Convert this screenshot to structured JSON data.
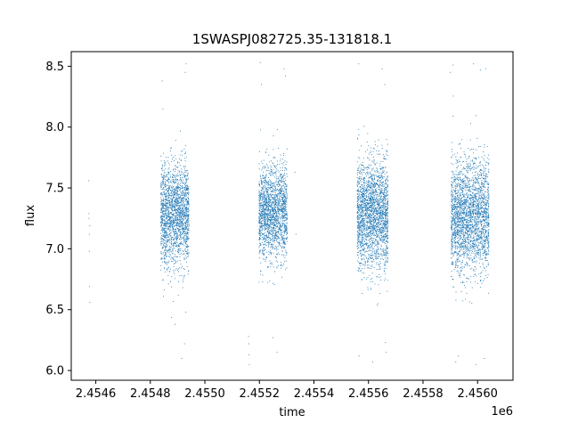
{
  "chart_data": {
    "type": "scatter",
    "title": "1SWASPJ082725.35-131818.1",
    "xlabel": "time",
    "ylabel": "flux",
    "x_offset_label": "1e6",
    "xlim": [
      2454510,
      2456130
    ],
    "ylim": [
      5.92,
      8.62
    ],
    "x_ticks": [
      2454600,
      2454800,
      2455000,
      2455200,
      2455400,
      2455600,
      2455800,
      2456000
    ],
    "x_tick_labels": [
      "2.4546",
      "2.4548",
      "2.4550",
      "2.4552",
      "2.4554",
      "2.4556",
      "2.4558",
      "2.4560"
    ],
    "y_ticks": [
      6.0,
      6.5,
      7.0,
      7.5,
      8.0,
      8.5
    ],
    "y_tick_labels": [
      "6.0",
      "6.5",
      "7.0",
      "7.5",
      "8.0",
      "8.5"
    ],
    "grid": false,
    "marker_color": "#1f77b4",
    "series": [
      {
        "points": [
          [
            2454574,
            7.56
          ],
          [
            2454575,
            7.29
          ],
          [
            2454575,
            7.25
          ],
          [
            2454576,
            7.12
          ],
          [
            2454576,
            6.98
          ],
          [
            2454577,
            6.69
          ],
          [
            2454578,
            6.56
          ],
          [
            2454578,
            7.19
          ]
        ]
      }
    ],
    "observing_seasons": [
      {
        "start": 2454840,
        "end": 2454940,
        "center": 7.28,
        "spread": 0.21,
        "count": 1900
      },
      {
        "start": 2455200,
        "end": 2455300,
        "center": 7.3,
        "spread": 0.19,
        "count": 1800
      },
      {
        "start": 2455560,
        "end": 2455670,
        "center": 7.28,
        "spread": 0.22,
        "count": 2200
      },
      {
        "start": 2455905,
        "end": 2456040,
        "center": 7.27,
        "spread": 0.23,
        "count": 2500
      }
    ],
    "extreme_points": [
      [
        2454843,
        8.38
      ],
      [
        2454846,
        8.15
      ],
      [
        2454848,
        6.61
      ],
      [
        2454890,
        6.38
      ],
      [
        2454915,
        6.1
      ],
      [
        2454928,
        8.45
      ],
      [
        2454931,
        8.52
      ],
      [
        2454925,
        6.22
      ],
      [
        2454930,
        6.48
      ],
      [
        2455160,
        6.28
      ],
      [
        2455161,
        6.22
      ],
      [
        2455162,
        6.13
      ],
      [
        2455163,
        6.05
      ],
      [
        2455203,
        8.53
      ],
      [
        2455207,
        8.35
      ],
      [
        2455250,
        6.27
      ],
      [
        2455265,
        6.15
      ],
      [
        2455290,
        8.48
      ],
      [
        2455295,
        8.42
      ],
      [
        2455330,
        7.63
      ],
      [
        2455334,
        7.12
      ],
      [
        2455564,
        8.52
      ],
      [
        2455565,
        6.12
      ],
      [
        2455615,
        6.07
      ],
      [
        2455650,
        8.48
      ],
      [
        2455660,
        8.35
      ],
      [
        2455662,
        6.23
      ],
      [
        2455665,
        6.15
      ],
      [
        2455900,
        8.45
      ],
      [
        2455910,
        8.51
      ],
      [
        2455920,
        6.07
      ],
      [
        2455930,
        6.12
      ],
      [
        2455985,
        8.52
      ],
      [
        2455995,
        6.05
      ],
      [
        2456010,
        8.47
      ],
      [
        2456030,
        8.48
      ],
      [
        2456025,
        6.1
      ]
    ]
  }
}
